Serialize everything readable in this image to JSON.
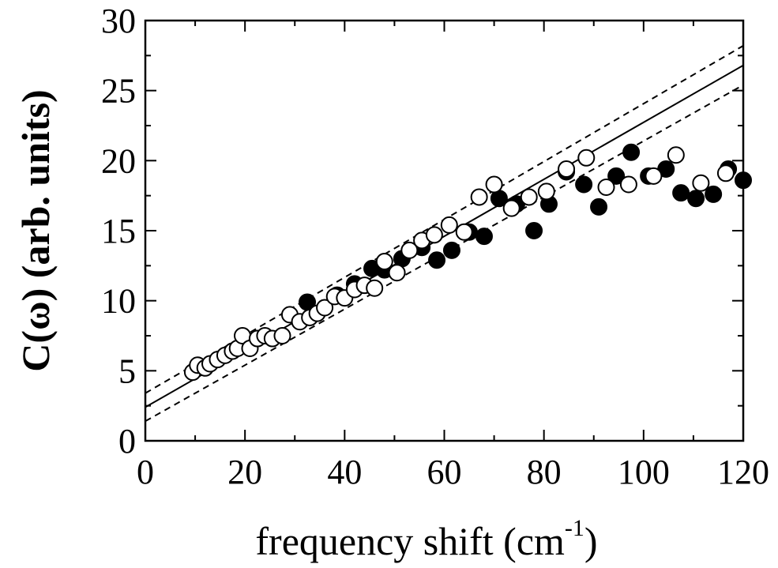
{
  "chart_data": {
    "type": "scatter",
    "title": "",
    "xlabel": "frequency shift (cm",
    "xlabel_sup": "-1",
    "xlabel_close": ")",
    "ylabel": "C(ω) (arb. units)",
    "xlim": [
      0,
      120
    ],
    "ylim": [
      0,
      30
    ],
    "x_ticks": [
      "0",
      "20",
      "40",
      "60",
      "80",
      "100",
      "120"
    ],
    "y_ticks": [
      "0",
      "5",
      "10",
      "15",
      "20",
      "25",
      "30"
    ],
    "grid": false,
    "legend": "none",
    "series": [
      {
        "marker": "filled-circle",
        "color": "#000000",
        "points": [
          [
            32.5,
            9.9
          ],
          [
            38.5,
            10.4
          ],
          [
            42,
            11.2
          ],
          [
            45.5,
            12.3
          ],
          [
            48,
            12.2
          ],
          [
            51.5,
            13.0
          ],
          [
            55.5,
            13.8
          ],
          [
            58.5,
            12.9
          ],
          [
            61.5,
            13.6
          ],
          [
            65,
            14.9
          ],
          [
            68,
            14.6
          ],
          [
            71,
            17.3
          ],
          [
            74.5,
            16.9
          ],
          [
            78,
            15.0
          ],
          [
            81,
            16.9
          ],
          [
            84.5,
            19.2
          ],
          [
            88,
            18.3
          ],
          [
            91,
            16.7
          ],
          [
            94.5,
            18.9
          ],
          [
            97.5,
            20.6
          ],
          [
            101,
            18.9
          ],
          [
            104.5,
            19.4
          ],
          [
            107.5,
            17.7
          ],
          [
            110.5,
            17.3
          ],
          [
            114,
            17.6
          ],
          [
            117,
            19.4
          ],
          [
            120,
            18.6
          ]
        ]
      },
      {
        "marker": "open-circle",
        "color": "#000000",
        "points": [
          [
            9.5,
            4.9
          ],
          [
            10.5,
            5.4
          ],
          [
            12,
            5.2
          ],
          [
            13,
            5.5
          ],
          [
            14.5,
            5.8
          ],
          [
            16,
            6.1
          ],
          [
            17.5,
            6.4
          ],
          [
            18.5,
            6.6
          ],
          [
            19.5,
            7.5
          ],
          [
            21,
            6.6
          ],
          [
            22.5,
            7.3
          ],
          [
            24,
            7.5
          ],
          [
            25.5,
            7.3
          ],
          [
            27.5,
            7.5
          ],
          [
            29,
            9.0
          ],
          [
            31,
            8.5
          ],
          [
            33,
            8.8
          ],
          [
            34.5,
            9.1
          ],
          [
            36,
            9.5
          ],
          [
            38,
            10.3
          ],
          [
            40,
            10.2
          ],
          [
            42,
            10.8
          ],
          [
            44,
            11.1
          ],
          [
            46,
            10.9
          ],
          [
            48,
            12.8
          ],
          [
            50.5,
            12.0
          ],
          [
            53,
            13.6
          ],
          [
            55.5,
            14.3
          ],
          [
            58,
            14.7
          ],
          [
            61,
            15.4
          ],
          [
            64,
            14.9
          ],
          [
            67,
            17.4
          ],
          [
            70,
            18.3
          ],
          [
            73.5,
            16.6
          ],
          [
            77,
            17.4
          ],
          [
            80.5,
            17.8
          ],
          [
            84.5,
            19.4
          ],
          [
            88.5,
            20.2
          ],
          [
            92.5,
            18.1
          ],
          [
            97,
            18.3
          ],
          [
            102,
            18.9
          ],
          [
            106.5,
            20.4
          ],
          [
            111.5,
            18.4
          ],
          [
            116.5,
            19.1
          ]
        ]
      }
    ],
    "fit_lines": [
      {
        "style": "solid",
        "from": [
          0,
          2.4
        ],
        "to": [
          120,
          26.8
        ]
      },
      {
        "style": "dashed",
        "from": [
          0,
          3.4
        ],
        "to": [
          120,
          28.2
        ]
      },
      {
        "style": "dashed",
        "from": [
          0,
          1.4
        ],
        "to": [
          120,
          25.4
        ]
      }
    ]
  }
}
